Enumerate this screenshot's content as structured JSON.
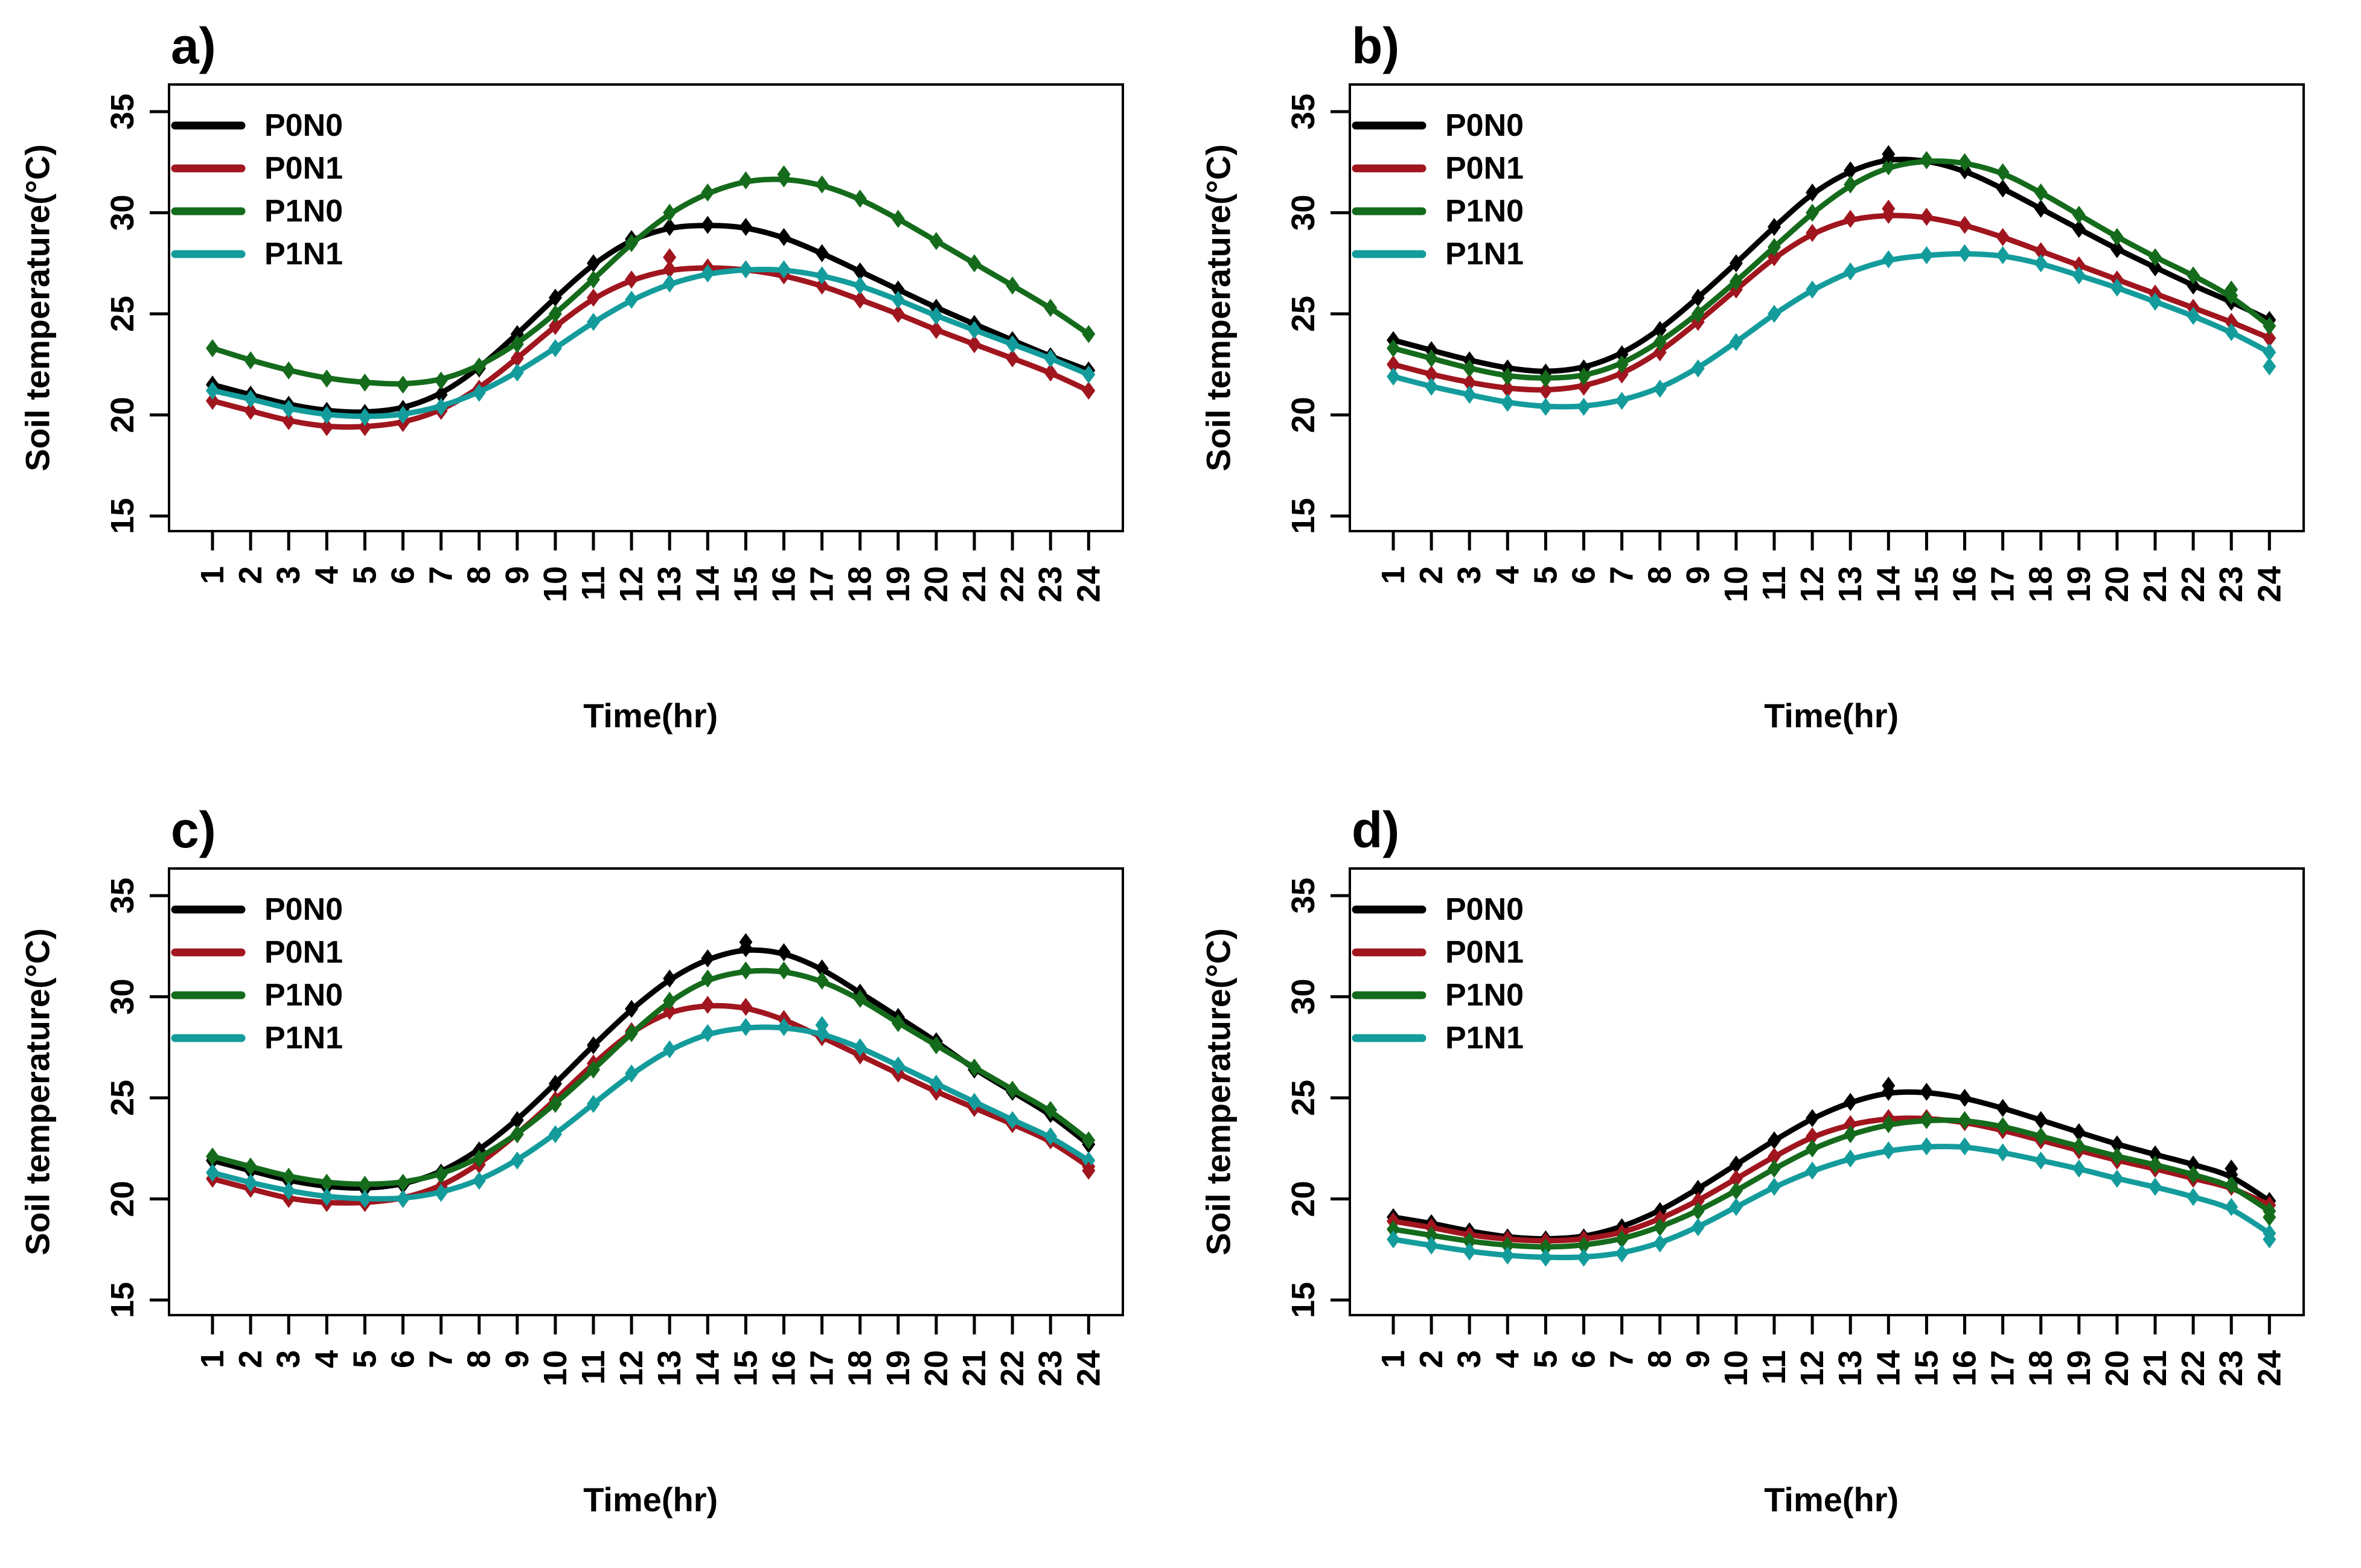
{
  "figure_title": "",
  "legend": [
    "P0N0",
    "P0N1",
    "P1N0",
    "P1N1"
  ],
  "colors": {
    "P0N0": "#000000",
    "P0N1": "#a0151e",
    "P1N0": "#156b1c",
    "P1N1": "#149c9c",
    "axis": "#000000",
    "background": "#ffffff"
  },
  "chart_data": [
    {
      "type": "line",
      "panel_label": "a)",
      "xlabel": "Time(hr)",
      "ylabel": "Soil temperature(°C)",
      "x_ticks": [
        1,
        2,
        3,
        4,
        5,
        6,
        7,
        8,
        9,
        10,
        11,
        12,
        13,
        14,
        15,
        16,
        17,
        18,
        19,
        20,
        21,
        22,
        23,
        24
      ],
      "y_ticks": [
        15,
        20,
        25,
        30,
        35
      ],
      "ylim": [
        14.3,
        36.4
      ],
      "grid": false,
      "legend_position": "top-left",
      "marker_shape": "diamond",
      "series": [
        {
          "name": "P0N0",
          "color": "#000000",
          "values": [
            21.5,
            21.0,
            20.5,
            20.2,
            20.1,
            20.3,
            21.0,
            22.3,
            24.0,
            25.8,
            27.5,
            28.7,
            29.3,
            29.4,
            29.3,
            28.8,
            28.0,
            27.1,
            26.2,
            25.3,
            24.5,
            23.7,
            22.9,
            22.2
          ]
        },
        {
          "name": "P0N1",
          "color": "#a0151e",
          "values": [
            20.7,
            20.2,
            19.7,
            19.4,
            19.4,
            19.6,
            20.2,
            21.3,
            22.8,
            24.4,
            25.8,
            26.7,
            27.2,
            27.3,
            27.2,
            26.9,
            26.4,
            25.7,
            25.0,
            24.2,
            23.5,
            22.8,
            22.1,
            21.2
          ]
        },
        {
          "name": "P1N0",
          "color": "#156b1c",
          "values": [
            23.3,
            22.7,
            22.2,
            21.8,
            21.6,
            21.5,
            21.7,
            22.4,
            23.5,
            25.0,
            26.7,
            28.5,
            30.0,
            31.0,
            31.6,
            31.7,
            31.4,
            30.7,
            29.7,
            28.6,
            27.5,
            26.4,
            25.3,
            24.0
          ]
        },
        {
          "name": "P1N1",
          "color": "#149c9c",
          "values": [
            21.2,
            20.8,
            20.3,
            20.0,
            19.9,
            20.0,
            20.4,
            21.1,
            22.1,
            23.3,
            24.6,
            25.7,
            26.5,
            27.0,
            27.2,
            27.2,
            26.9,
            26.4,
            25.7,
            24.9,
            24.2,
            23.5,
            22.8,
            22.0
          ]
        }
      ],
      "outlier_points": [
        {
          "series": "P0N1",
          "x": 13,
          "y": 27.8
        },
        {
          "series": "P1N0",
          "x": 16,
          "y": 31.9
        }
      ]
    },
    {
      "type": "line",
      "panel_label": "b)",
      "xlabel": "Time(hr)",
      "ylabel": "Soil temperature(°C)",
      "x_ticks": [
        1,
        2,
        3,
        4,
        5,
        6,
        7,
        8,
        9,
        10,
        11,
        12,
        13,
        14,
        15,
        16,
        17,
        18,
        19,
        20,
        21,
        22,
        23,
        24
      ],
      "y_ticks": [
        15,
        20,
        25,
        30,
        35
      ],
      "ylim": [
        14.3,
        36.4
      ],
      "grid": false,
      "legend_position": "top-left",
      "marker_shape": "diamond",
      "series": [
        {
          "name": "P0N0",
          "color": "#000000",
          "values": [
            23.7,
            23.2,
            22.7,
            22.3,
            22.1,
            22.3,
            23.0,
            24.2,
            25.8,
            27.5,
            29.3,
            31.0,
            32.1,
            32.7,
            32.6,
            32.1,
            31.2,
            30.2,
            29.2,
            28.2,
            27.3,
            26.4,
            25.6,
            24.7
          ]
        },
        {
          "name": "P0N1",
          "color": "#a0151e",
          "values": [
            22.5,
            22.0,
            21.6,
            21.3,
            21.2,
            21.4,
            22.0,
            23.1,
            24.6,
            26.2,
            27.8,
            29.0,
            29.7,
            29.9,
            29.8,
            29.4,
            28.8,
            28.1,
            27.4,
            26.7,
            26.0,
            25.3,
            24.6,
            23.8
          ]
        },
        {
          "name": "P1N0",
          "color": "#156b1c",
          "values": [
            23.3,
            22.8,
            22.3,
            21.9,
            21.8,
            21.9,
            22.5,
            23.6,
            25.0,
            26.6,
            28.3,
            30.0,
            31.4,
            32.3,
            32.6,
            32.5,
            32.0,
            31.0,
            29.9,
            28.8,
            27.8,
            26.9,
            25.9,
            24.4
          ]
        },
        {
          "name": "P1N1",
          "color": "#149c9c",
          "values": [
            21.9,
            21.4,
            21.0,
            20.6,
            20.4,
            20.4,
            20.7,
            21.3,
            22.3,
            23.6,
            25.0,
            26.2,
            27.1,
            27.7,
            27.9,
            28.0,
            27.9,
            27.5,
            26.9,
            26.3,
            25.6,
            24.9,
            24.1,
            23.1
          ]
        }
      ],
      "outlier_points": [
        {
          "series": "P0N0",
          "x": 14,
          "y": 32.9
        },
        {
          "series": "P0N1",
          "x": 14,
          "y": 30.2
        },
        {
          "series": "P1N0",
          "x": 23,
          "y": 26.2
        },
        {
          "series": "P1N1",
          "x": 24,
          "y": 22.4
        }
      ]
    },
    {
      "type": "line",
      "panel_label": "c)",
      "xlabel": "Time(hr)",
      "ylabel": "Soil temperature(°C)",
      "x_ticks": [
        1,
        2,
        3,
        4,
        5,
        6,
        7,
        8,
        9,
        10,
        11,
        12,
        13,
        14,
        15,
        16,
        17,
        18,
        19,
        20,
        21,
        22,
        23,
        24
      ],
      "y_ticks": [
        15,
        20,
        25,
        30,
        35
      ],
      "ylim": [
        14.3,
        36.4
      ],
      "grid": false,
      "legend_position": "top-left",
      "marker_shape": "diamond",
      "series": [
        {
          "name": "P0N0",
          "color": "#000000",
          "values": [
            21.9,
            21.4,
            20.9,
            20.6,
            20.5,
            20.7,
            21.3,
            22.4,
            23.9,
            25.7,
            27.6,
            29.4,
            30.9,
            31.9,
            32.4,
            32.2,
            31.4,
            30.2,
            29.0,
            27.8,
            26.4,
            25.3,
            24.2,
            22.7
          ]
        },
        {
          "name": "P0N1",
          "color": "#a0151e",
          "values": [
            21.0,
            20.5,
            20.0,
            19.8,
            19.8,
            20.0,
            20.6,
            21.7,
            23.2,
            24.9,
            26.7,
            28.3,
            29.3,
            29.6,
            29.5,
            28.9,
            28.0,
            27.1,
            26.2,
            25.3,
            24.5,
            23.7,
            22.9,
            21.6
          ]
        },
        {
          "name": "P1N0",
          "color": "#156b1c",
          "values": [
            22.1,
            21.6,
            21.1,
            20.8,
            20.7,
            20.8,
            21.2,
            22.0,
            23.2,
            24.7,
            26.4,
            28.2,
            29.8,
            30.9,
            31.3,
            31.3,
            30.8,
            29.9,
            28.7,
            27.6,
            26.5,
            25.4,
            24.4,
            22.9
          ]
        },
        {
          "name": "P1N1",
          "color": "#149c9c",
          "values": [
            21.3,
            20.8,
            20.4,
            20.1,
            20.0,
            20.0,
            20.3,
            20.9,
            21.9,
            23.2,
            24.7,
            26.2,
            27.4,
            28.2,
            28.5,
            28.5,
            28.2,
            27.5,
            26.6,
            25.7,
            24.8,
            23.9,
            23.1,
            21.9
          ]
        }
      ],
      "outlier_points": [
        {
          "series": "P0N0",
          "x": 15,
          "y": 32.7
        },
        {
          "series": "P1N1",
          "x": 17,
          "y": 28.6
        },
        {
          "series": "P0N1",
          "x": 24,
          "y": 21.4
        }
      ]
    },
    {
      "type": "line",
      "panel_label": "d)",
      "xlabel": "Time(hr)",
      "ylabel": "Soil temperature(°C)",
      "x_ticks": [
        1,
        2,
        3,
        4,
        5,
        6,
        7,
        8,
        9,
        10,
        11,
        12,
        13,
        14,
        15,
        16,
        17,
        18,
        19,
        20,
        21,
        22,
        23,
        24
      ],
      "y_ticks": [
        15,
        20,
        25,
        30,
        35
      ],
      "ylim": [
        14.3,
        36.4
      ],
      "grid": false,
      "legend_position": "top-left",
      "marker_shape": "diamond",
      "series": [
        {
          "name": "P0N0",
          "color": "#000000",
          "values": [
            19.1,
            18.8,
            18.4,
            18.1,
            18.0,
            18.1,
            18.6,
            19.4,
            20.5,
            21.7,
            22.9,
            24.0,
            24.8,
            25.3,
            25.3,
            25.0,
            24.5,
            23.9,
            23.3,
            22.7,
            22.2,
            21.7,
            21.2,
            19.9
          ]
        },
        {
          "name": "P0N1",
          "color": "#a0151e",
          "values": [
            18.9,
            18.6,
            18.2,
            18.0,
            17.9,
            18.0,
            18.3,
            19.0,
            19.9,
            21.0,
            22.1,
            23.1,
            23.7,
            24.0,
            24.0,
            23.8,
            23.4,
            22.9,
            22.4,
            21.9,
            21.5,
            21.0,
            20.6,
            19.7
          ]
        },
        {
          "name": "P1N0",
          "color": "#156b1c",
          "values": [
            18.5,
            18.2,
            17.9,
            17.7,
            17.6,
            17.7,
            18.0,
            18.6,
            19.4,
            20.4,
            21.5,
            22.5,
            23.2,
            23.7,
            23.9,
            23.9,
            23.6,
            23.1,
            22.6,
            22.1,
            21.7,
            21.2,
            20.7,
            19.4
          ]
        },
        {
          "name": "P1N1",
          "color": "#149c9c",
          "values": [
            18.0,
            17.7,
            17.4,
            17.2,
            17.1,
            17.1,
            17.3,
            17.8,
            18.6,
            19.6,
            20.6,
            21.4,
            22.0,
            22.4,
            22.6,
            22.6,
            22.3,
            21.9,
            21.5,
            21.0,
            20.6,
            20.1,
            19.6,
            18.3
          ]
        }
      ],
      "outlier_points": [
        {
          "series": "P0N0",
          "x": 14,
          "y": 25.6
        },
        {
          "series": "P0N0",
          "x": 23,
          "y": 21.5
        },
        {
          "series": "P1N0",
          "x": 24,
          "y": 19.1
        },
        {
          "series": "P1N1",
          "x": 24,
          "y": 18.0
        }
      ]
    }
  ]
}
